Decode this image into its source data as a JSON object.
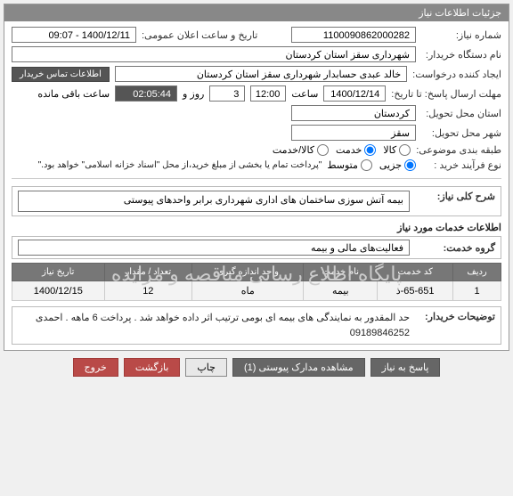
{
  "panel": {
    "title": "جزئیات اطلاعات نیاز"
  },
  "fields": {
    "need_no_label": "شماره نیاز:",
    "need_no": "1100090862000282",
    "announce_label": "تاریخ و ساعت اعلان عمومی:",
    "announce_val": "1400/12/11 - 09:07",
    "buyer_org_label": "نام دستگاه خریدار:",
    "buyer_org": "شهرداری سقز استان کردستان",
    "requester_label": "ایجاد کننده درخواست:",
    "requester": "خالد عبدی حسابدار شهرداری سقز استان کردستان",
    "contact_badge": "اطلاعات تماس خریدار",
    "deadline_label": "مهلت ارسال پاسخ: تا تاریخ:",
    "deadline_date": "1400/12/14",
    "time_label": "ساعت",
    "deadline_time": "12:00",
    "days_label": "روز و",
    "days_val": "3",
    "remain_time": "02:05:44",
    "remain_label": "ساعت باقی مانده",
    "province_label": "استان محل تحویل:",
    "province": "کردستان",
    "city_label": "شهر محل تحویل:",
    "city": "سقز",
    "subject_class_label": "طبقه بندی موضوعی:",
    "radio_kala": "کالا",
    "radio_khadamat": "خدمت",
    "radio_kalakhadamat": "کالا/خدمت",
    "process_label": "نوع فرآیند خرید :",
    "radio_joze": "جزیی",
    "radio_motevaset": "متوسط",
    "payment_note": "\"پرداخت تمام یا بخشی از مبلغ خرید،از محل \"اسناد خزانه اسلامی\" خواهد بود.\"",
    "general_desc_label": "شرح کلی نیاز:",
    "general_desc": "بیمه آتش سوزی ساختمان های اداری شهرداری برابر واحدهای پیوستی",
    "section_services": "اطلاعات خدمات مورد نیاز",
    "group_label": "گروه خدمت:",
    "group_val": "فعالیت‌های مالی و بیمه",
    "buyer_notes_label": "توضیحات خریدار:",
    "buyer_notes": "حد المقدور به نمایندگی های بیمه ای بومی ترتیب اثر داده خواهد شد . پرداخت 6 ماهه . احمدی 09189846252"
  },
  "table": {
    "headers": {
      "row": "ردیف",
      "code": "کد خدمت",
      "name": "نام خدمت",
      "unit": "واحد اندازه گیری",
      "qty": "تعداد / مقدار",
      "date": "تاریخ نیاز"
    },
    "rows": [
      {
        "row": "1",
        "code": "65-651-ذ",
        "name": "بیمه",
        "unit": "ماه",
        "qty": "12",
        "date": "1400/12/15"
      }
    ],
    "watermark": "پایگاه اطلاع رسانی مناقصه و مزایده"
  },
  "buttons": {
    "respond": "پاسخ به نیاز",
    "view_docs": "مشاهده مدارک پیوستی (1)",
    "print": "چاپ",
    "back": "بازگشت",
    "exit": "خروج"
  }
}
